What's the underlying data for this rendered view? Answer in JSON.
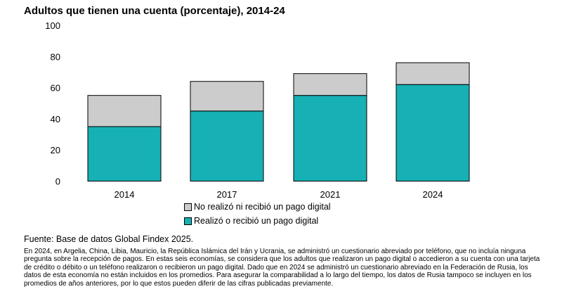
{
  "chart_data": {
    "type": "bar",
    "stacked": true,
    "title": "Adultos que tienen una cuenta (porcentaje), 2014-24",
    "categories": [
      "2014",
      "2017",
      "2021",
      "2024"
    ],
    "series": [
      {
        "name": "Realizó o recibió un pago digital",
        "color": "#17b1b5",
        "values": [
          35,
          45,
          55,
          62
        ]
      },
      {
        "name": "No realizó ni recibió un pago digital",
        "color": "#cccccc",
        "values": [
          20,
          19,
          14,
          14
        ]
      }
    ],
    "totals": [
      55,
      64,
      69,
      76
    ],
    "ylim": [
      0,
      100
    ],
    "yticks": [
      "0",
      "20",
      "40",
      "60",
      "80",
      "100"
    ],
    "xlabel": "",
    "ylabel": "",
    "legend_position": "bottom"
  },
  "footer": {
    "source": "Fuente: Base de datos Global Findex 2025.",
    "note": "En 2024, en Argelia, China, Libia, Mauricio, la República Islámica del Irán y Ucrania, se administró un cuestionario abreviado por teléfono, que no incluía ninguna pregunta sobre la recepción de pagos. En estas seis economías, se considera que los adultos que realizaron un pago digital o accedieron a su cuenta con una tarjeta de crédito o débito o un teléfono realizaron o recibieron un pago digital. Dado que en 2024 se administró un cuestionario abreviado en la Federación de Rusia, los datos de esta economía no están incluidos en los promedios. Para asegurar la comparabilidad a lo largo del tiempo, los datos de Rusia tampoco se incluyen en los promedios de años anteriores, por lo que estos pueden diferir de las cifras publicadas previamente."
  }
}
